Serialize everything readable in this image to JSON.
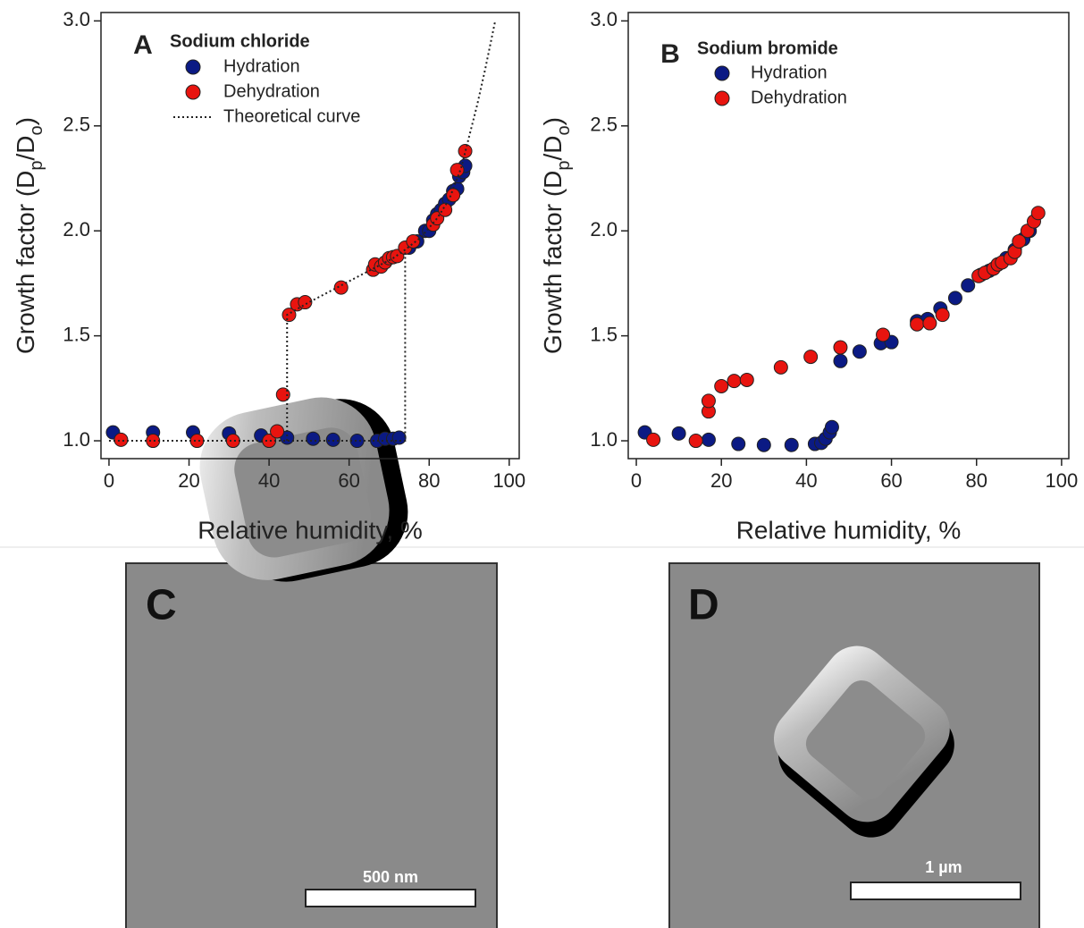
{
  "chart_data": [
    {
      "type": "scatter",
      "panel": "A",
      "title": "Sodium chloride",
      "xlabel": "Relative humidity, %",
      "ylabel": [
        "Growth factor (D",
        "p",
        "/D",
        "o",
        ")"
      ],
      "xlim": [
        -2,
        102.5
      ],
      "ylim": [
        0.915,
        3.04
      ],
      "xticks": [
        0,
        20,
        40,
        60,
        80,
        100
      ],
      "yticks": [
        {
          "value": 1,
          "label": "1.0"
        },
        {
          "value": 1.5,
          "label": "1.5"
        },
        {
          "value": 2,
          "label": "2.0"
        },
        {
          "value": 2.5,
          "label": "2.5"
        },
        {
          "value": 3,
          "label": "3.0"
        }
      ],
      "legend": "upper left",
      "series": [
        {
          "name": "Hydration",
          "color": "#0b1a84",
          "x": [
            1,
            11,
            21,
            30,
            38,
            44.5,
            51,
            56,
            62,
            67,
            69,
            71,
            72.5,
            75,
            77,
            79,
            80,
            81,
            82,
            83,
            84,
            85,
            86,
            87,
            87.5,
            88.5,
            89
          ],
          "values": [
            1.04,
            1.04,
            1.04,
            1.035,
            1.025,
            1.015,
            1.01,
            1.005,
            1.0,
            1.0,
            1.01,
            1.01,
            1.015,
            1.92,
            1.95,
            2.0,
            2.0,
            2.05,
            2.08,
            2.1,
            2.13,
            2.15,
            2.19,
            2.2,
            2.26,
            2.28,
            2.31
          ]
        },
        {
          "name": "Dehydration",
          "color": "#e8140f",
          "x": [
            3,
            11,
            22,
            31,
            40,
            42,
            43.5,
            45,
            47,
            49,
            58,
            66,
            66.5,
            68,
            69,
            70,
            71,
            72,
            74,
            76,
            81,
            82,
            84,
            86,
            87,
            89
          ],
          "values": [
            1.005,
            1.0,
            1.0,
            1.0,
            1.0,
            1.045,
            1.22,
            1.6,
            1.65,
            1.66,
            1.73,
            1.815,
            1.84,
            1.83,
            1.85,
            1.87,
            1.875,
            1.88,
            1.92,
            1.95,
            2.03,
            2.06,
            2.1,
            2.17,
            2.29,
            2.38
          ]
        },
        {
          "name": "Theoretical curve",
          "color": "#222222",
          "style": "dotted",
          "x": [
            0,
            74,
            74,
            null,
            44.5,
            44.5,
            50,
            57,
            62,
            67,
            71,
            74,
            78,
            82,
            85,
            88,
            90,
            92,
            94,
            96.5
          ],
          "values": [
            1.0,
            1.0,
            1.91,
            null,
            1.0,
            1.6,
            1.66,
            1.73,
            1.78,
            1.83,
            1.87,
            1.91,
            1.97,
            2.06,
            2.15,
            2.3,
            2.45,
            2.6,
            2.77,
            3.0
          ]
        }
      ]
    },
    {
      "type": "scatter",
      "panel": "B",
      "title": "Sodium bromide",
      "xlabel": "Relative humidity, %",
      "ylabel": [
        "Growth factor (D",
        "p",
        "/D",
        "o",
        ")"
      ],
      "xlim": [
        -1.9,
        101.7
      ],
      "ylim": [
        0.915,
        3.04
      ],
      "xticks": [
        0,
        20,
        40,
        60,
        80,
        100
      ],
      "yticks": [
        {
          "value": 1,
          "label": "1.0"
        },
        {
          "value": 1.5,
          "label": "1.5"
        },
        {
          "value": 2,
          "label": "2.0"
        },
        {
          "value": 2.5,
          "label": "2.5"
        },
        {
          "value": 3,
          "label": "3.0"
        }
      ],
      "legend": "upper left",
      "series": [
        {
          "name": "Hydration",
          "color": "#0b1a84",
          "x": [
            2,
            10,
            17,
            24,
            30,
            36.5,
            42,
            43.5,
            44.5,
            45.5,
            46,
            48,
            52.5,
            57.5,
            60,
            66,
            68.5,
            71.5,
            75,
            78,
            81,
            83,
            85,
            87,
            89,
            91,
            92.5
          ],
          "values": [
            1.04,
            1.035,
            1.005,
            0.985,
            0.98,
            0.98,
            0.985,
            0.99,
            1.01,
            1.04,
            1.065,
            1.38,
            1.425,
            1.465,
            1.47,
            1.57,
            1.58,
            1.63,
            1.68,
            1.74,
            1.79,
            1.81,
            1.84,
            1.87,
            1.91,
            1.96,
            2.0
          ]
        },
        {
          "name": "Dehydration",
          "color": "#e8140f",
          "x": [
            4,
            14,
            17,
            17,
            20,
            23,
            26,
            34,
            41,
            48,
            58,
            66,
            69,
            72,
            80.5,
            82,
            84,
            85,
            86,
            88,
            89,
            90,
            92,
            93.5,
            94.5
          ],
          "values": [
            1.005,
            1.0,
            1.14,
            1.19,
            1.26,
            1.285,
            1.29,
            1.35,
            1.4,
            1.445,
            1.505,
            1.555,
            1.56,
            1.6,
            1.785,
            1.8,
            1.82,
            1.84,
            1.85,
            1.87,
            1.9,
            1.95,
            2.0,
            2.045,
            2.085
          ]
        }
      ]
    }
  ],
  "images": [
    {
      "label": "C",
      "scale_bar": "500 nm"
    },
    {
      "label": "D",
      "scale_bar": "1 µm"
    }
  ]
}
